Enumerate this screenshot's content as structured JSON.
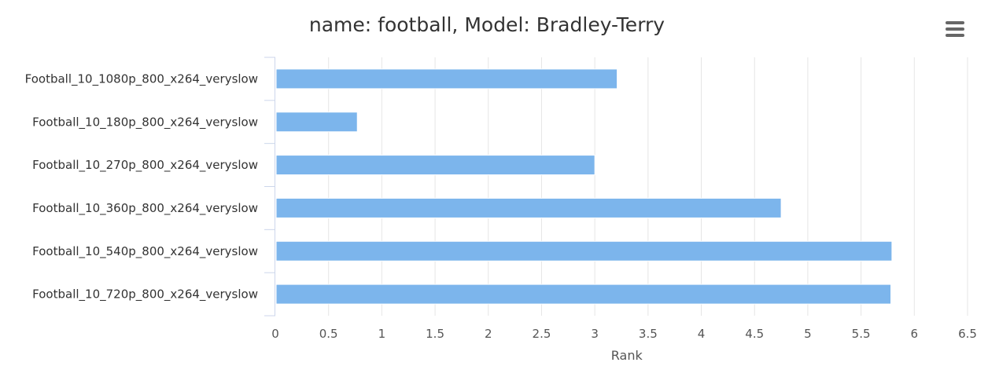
{
  "chart_data": {
    "type": "bar",
    "orientation": "horizontal",
    "title": "name: football, Model: Bradley-Terry",
    "xlabel": "Rank",
    "ylabel": "",
    "categories": [
      "Football_10_1080p_800_x264_veryslow",
      "Football_10_180p_800_x264_veryslow",
      "Football_10_270p_800_x264_veryslow",
      "Football_10_360p_800_x264_veryslow",
      "Football_10_540p_800_x264_veryslow",
      "Football_10_720p_800_x264_veryslow"
    ],
    "values": [
      3.21,
      0.77,
      3.0,
      4.75,
      5.79,
      5.78
    ],
    "xlim": [
      0,
      6.5
    ],
    "x_ticks": [
      "0",
      "0.5",
      "1",
      "1.5",
      "2",
      "2.5",
      "3",
      "3.5",
      "4",
      "4.5",
      "5",
      "5.5",
      "6",
      "6.5"
    ],
    "grid": true,
    "bar_color": "#7cb5ec"
  },
  "toolbar": {
    "menu_icon": "hamburger-menu-icon"
  }
}
